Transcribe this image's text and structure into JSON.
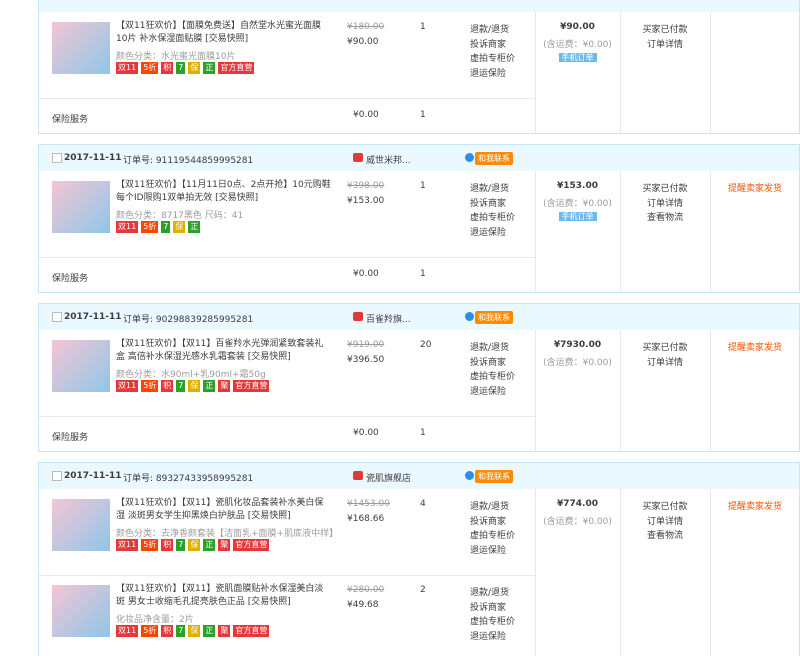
{
  "orders": [
    {
      "items": [
        {
          "title": "【双11狂欢价】【面膜免费送】自然堂水光蜜光面膜10片 补水保湿面贴膜 [交易快照]",
          "sku": "颜色分类：水光蜜光面膜10片",
          "tags": [
            {
              "text": "双11",
              "color": "#e4393c"
            },
            {
              "text": "5折",
              "color": "#ff4400"
            },
            {
              "text": "积",
              "color": "#e4393c"
            },
            {
              "text": "7",
              "color": "#2ba02b"
            },
            {
              "text": "保",
              "color": "#e0b000"
            },
            {
              "text": "正",
              "color": "#2ba02b"
            },
            {
              "text": "官方直营",
              "color": "#e4393c"
            }
          ],
          "original_price": "¥180.00",
          "price": "¥90.00",
          "quantity": "1",
          "services": [
            "退款/退货",
            "投诉商家",
            "虚拍专柜价",
            "退运保险"
          ]
        }
      ],
      "insurance": {
        "label": "保险服务",
        "price": "¥0.00",
        "quantity": "1"
      },
      "total": "¥90.00",
      "shipping": "(含运费：¥0.00)",
      "badge": "手机订单",
      "status": [
        "买家已付款",
        "订单详情"
      ]
    },
    {
      "date": "2017-11-11",
      "order_no": "订单号: 91119544859995281",
      "shop": "威世米邦...",
      "contact": "和我联系",
      "items": [
        {
          "title": "【双11狂欢价】【11月11日0点、2点开抢】10元购鞋 每个ID限购1双单拍无效 [交易快照]",
          "sku": "颜色分类：8717黑色  尺码：41",
          "tags": [
            {
              "text": "双11",
              "color": "#e4393c"
            },
            {
              "text": "5折",
              "color": "#ff4400"
            },
            {
              "text": "7",
              "color": "#2ba02b"
            },
            {
              "text": "保",
              "color": "#e0b000"
            },
            {
              "text": "正",
              "color": "#2ba02b"
            }
          ],
          "original_price": "¥398.00",
          "price": "¥153.00",
          "quantity": "1",
          "services": [
            "退款/退货",
            "投诉商家",
            "虚拍专柜价",
            "退运保险"
          ]
        }
      ],
      "insurance": {
        "label": "保险服务",
        "price": "¥0.00",
        "quantity": "1"
      },
      "total": "¥153.00",
      "shipping": "(含运费：¥0.00)",
      "badge": "手机订单",
      "status": [
        "买家已付款",
        "订单详情",
        "查看物流"
      ],
      "action": "提醒卖家发货"
    },
    {
      "date": "2017-11-11",
      "order_no": "订单号: 90298839285995281",
      "shop": "百雀羚旗...",
      "contact": "和我联系",
      "items": [
        {
          "title": "【双11狂欢价】【双11】百雀羚水光弹润紧致套装礼盒 高倍补水保湿光感水乳霜套装 [交易快照]",
          "sku": "颜色分类：水90ml+乳90ml+霜50g",
          "tags": [
            {
              "text": "双11",
              "color": "#e4393c"
            },
            {
              "text": "5折",
              "color": "#ff4400"
            },
            {
              "text": "积",
              "color": "#e4393c"
            },
            {
              "text": "7",
              "color": "#2ba02b"
            },
            {
              "text": "保",
              "color": "#e0b000"
            },
            {
              "text": "正",
              "color": "#2ba02b"
            },
            {
              "text": "聚",
              "color": "#e4393c"
            },
            {
              "text": "官方直营",
              "color": "#e4393c"
            }
          ],
          "original_price": "¥919.00",
          "price": "¥396.50",
          "quantity": "20",
          "services": [
            "退款/退货",
            "投诉商家",
            "虚拍专柜价",
            "退运保险"
          ]
        }
      ],
      "insurance": {
        "label": "保险服务",
        "price": "¥0.00",
        "quantity": "1"
      },
      "total": "¥7930.00",
      "shipping": "(含运费：¥0.00)",
      "status": [
        "买家已付款",
        "订单详情"
      ],
      "action": "提醒卖家发货"
    },
    {
      "date": "2017-11-11",
      "order_no": "订单号: 89327433958995281",
      "shop": "瓷肌旗舰店",
      "contact": "和我联系",
      "items": [
        {
          "title": "【双11狂欢价】【双11】瓷肌化妆品套装补水美白保湿 淡斑男女学生抑黑焕白护肤品 [交易快照]",
          "sku": "颜色分类：去净香颜套装【洁面乳+面膜+肌底液中样】",
          "tags": [
            {
              "text": "双11",
              "color": "#e4393c"
            },
            {
              "text": "5折",
              "color": "#ff4400"
            },
            {
              "text": "积",
              "color": "#e4393c"
            },
            {
              "text": "7",
              "color": "#2ba02b"
            },
            {
              "text": "保",
              "color": "#e0b000"
            },
            {
              "text": "正",
              "color": "#2ba02b"
            },
            {
              "text": "聚",
              "color": "#e4393c"
            },
            {
              "text": "官方直营",
              "color": "#e4393c"
            }
          ],
          "original_price": "¥1453.00",
          "price": "¥168.66",
          "quantity": "4",
          "services": [
            "退款/退货",
            "投诉商家",
            "虚拍专柜价",
            "退运保险"
          ]
        },
        {
          "title": "【双11狂欢价】【双11】瓷肌面膜贴补水保湿美白淡斑 男女士收缩毛孔提亮肤色正品 [交易快照]",
          "sku": "化妆品净含量：2片",
          "tags": [
            {
              "text": "双11",
              "color": "#e4393c"
            },
            {
              "text": "5折",
              "color": "#ff4400"
            },
            {
              "text": "积",
              "color": "#e4393c"
            },
            {
              "text": "7",
              "color": "#2ba02b"
            },
            {
              "text": "保",
              "color": "#e0b000"
            },
            {
              "text": "正",
              "color": "#2ba02b"
            },
            {
              "text": "聚",
              "color": "#e4393c"
            },
            {
              "text": "官方直营",
              "color": "#e4393c"
            }
          ],
          "original_price": "¥280.00",
          "price": "¥49.68",
          "quantity": "2",
          "services": [
            "退款/退货",
            "投诉商家",
            "虚拍专柜价",
            "退运保险"
          ]
        }
      ],
      "total": "¥774.00",
      "shipping": "(含运费：¥0.00)",
      "status": [
        "买家已付款",
        "订单详情",
        "查看物流"
      ],
      "action": "提醒卖家发货"
    }
  ]
}
